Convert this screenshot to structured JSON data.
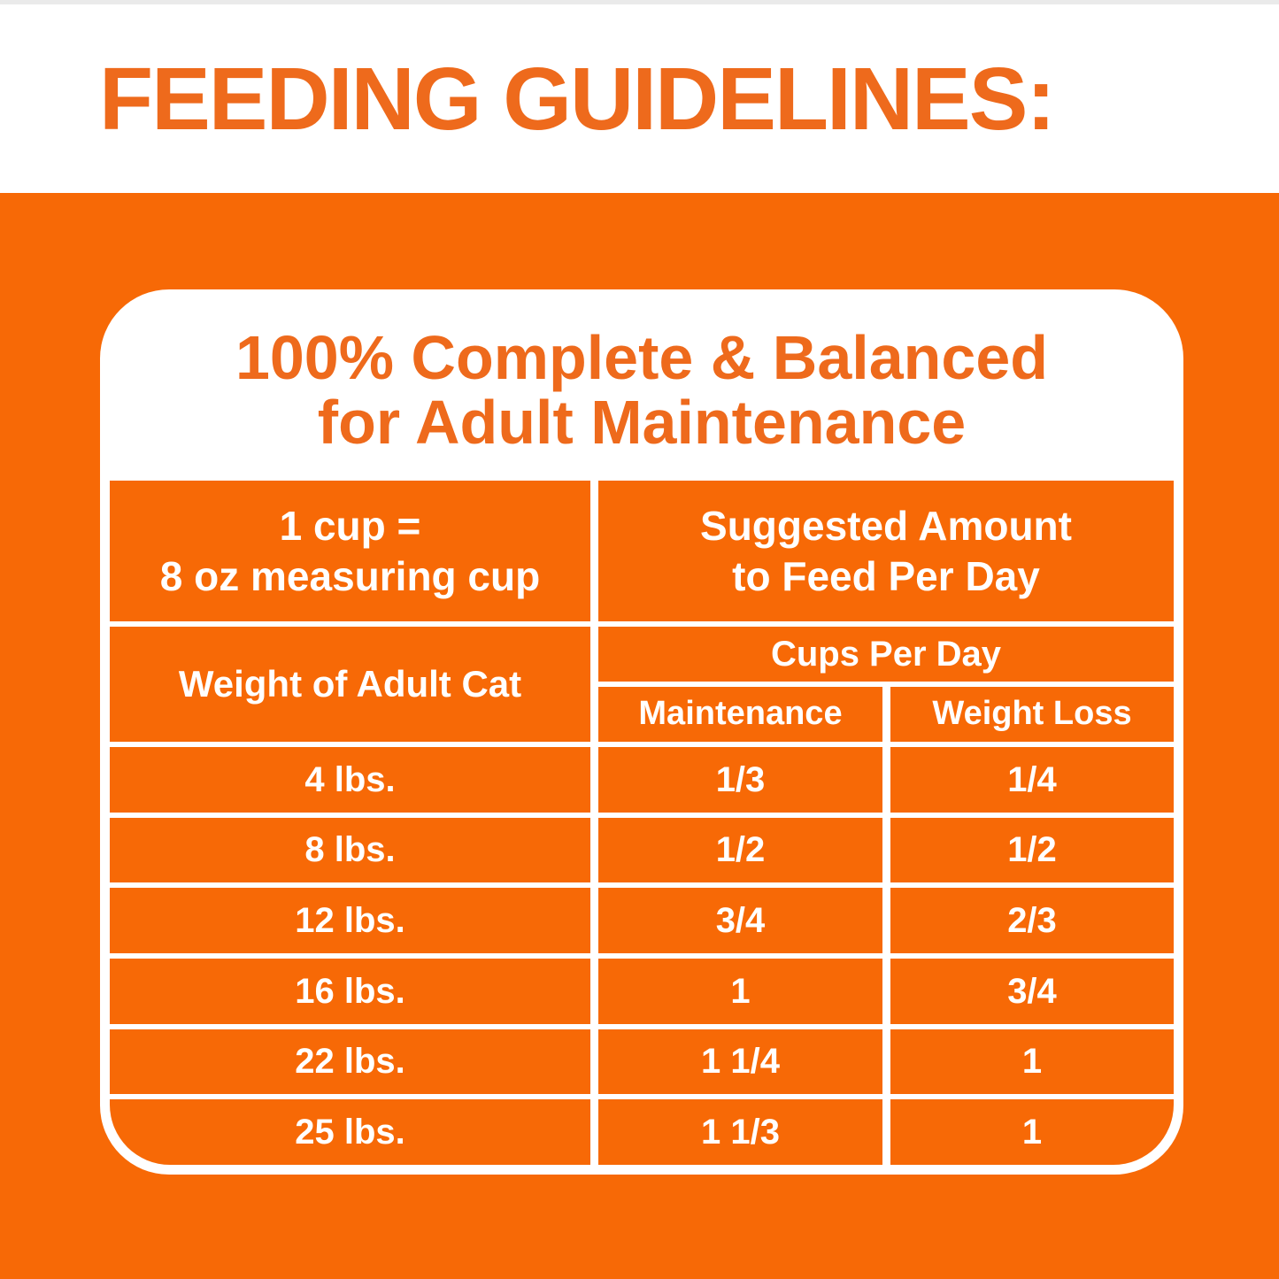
{
  "title": "FEEDING GUIDELINES:",
  "colors": {
    "bg_orange": "#F76906",
    "text_orange": "#EE6A1C",
    "white": "#FFFFFF"
  },
  "panel": {
    "heading_line1": "100% Complete & Balanced",
    "heading_line2": "for Adult Maintenance"
  },
  "table": {
    "note_line1": "1 cup =",
    "note_line2": "8 oz measuring cup",
    "suggested_line1": "Suggested Amount",
    "suggested_line2": "to Feed Per Day",
    "col_weight": "Weight of Adult Cat",
    "col_group": "Cups Per Day",
    "col_maintenance": "Maintenance",
    "col_weight_loss": "Weight Loss",
    "rows": [
      {
        "weight": "4 lbs.",
        "maintenance": "1/3",
        "weight_loss": "1/4"
      },
      {
        "weight": "8 lbs.",
        "maintenance": "1/2",
        "weight_loss": "1/2"
      },
      {
        "weight": "12 lbs.",
        "maintenance": "3/4",
        "weight_loss": "2/3"
      },
      {
        "weight": "16 lbs.",
        "maintenance": "1",
        "weight_loss": "3/4"
      },
      {
        "weight": "22 lbs.",
        "maintenance": "1 1/4",
        "weight_loss": "1"
      },
      {
        "weight": "25 lbs.",
        "maintenance": "1 1/3",
        "weight_loss": "1"
      }
    ]
  },
  "chart_data": {
    "type": "table",
    "title": "FEEDING GUIDELINES:",
    "subtitle": "100% Complete & Balanced for Adult Maintenance",
    "note": "1 cup = 8 oz measuring cup",
    "group_headers": [
      "Suggested Amount to Feed Per Day",
      "Cups Per Day"
    ],
    "columns": [
      "Weight of Adult Cat",
      "Maintenance",
      "Weight Loss"
    ],
    "rows": [
      [
        "4 lbs.",
        "1/3",
        "1/4"
      ],
      [
        "8 lbs.",
        "1/2",
        "1/2"
      ],
      [
        "12 lbs.",
        "3/4",
        "2/3"
      ],
      [
        "16 lbs.",
        "1",
        "3/4"
      ],
      [
        "22 lbs.",
        "1 1/4",
        "1"
      ],
      [
        "25 lbs.",
        "1 1/3",
        "1"
      ]
    ]
  }
}
